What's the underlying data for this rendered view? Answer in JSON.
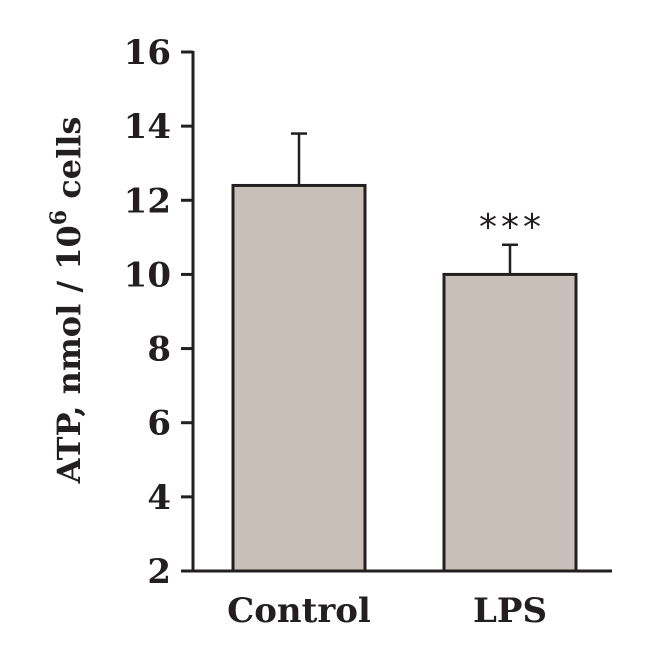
{
  "chart_data": {
    "type": "bar",
    "categories": [
      "Control",
      "LPS"
    ],
    "values": [
      12.4,
      10.0
    ],
    "errors": [
      1.4,
      0.8
    ],
    "annotations": [
      "",
      "***"
    ],
    "ylabel_main": "ATP, nmol / 10",
    "ylabel_sup": "6",
    "ylabel_tail": " cells",
    "ylim": [
      2,
      16
    ],
    "yticks": [
      2,
      4,
      6,
      8,
      10,
      12,
      14,
      16
    ],
    "grid": false,
    "bar_color": "#c8bfb9",
    "ink_color": "#231f20"
  }
}
